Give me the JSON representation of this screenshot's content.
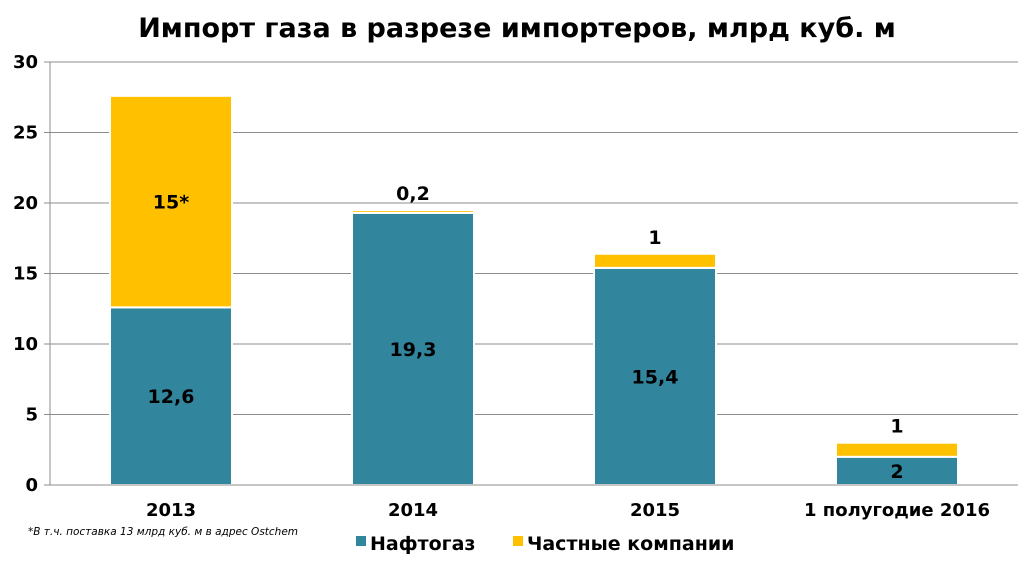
{
  "chart_data": {
    "type": "bar",
    "stacked": true,
    "title": "Импорт газа в разрезе импортеров, млрд куб. м",
    "categories": [
      "2013",
      "2014",
      "2015",
      "1 полугодие 2016"
    ],
    "series": [
      {
        "name": "Нафтогаз",
        "color": "#31859C",
        "values": [
          12.6,
          19.3,
          15.4,
          2
        ],
        "labels": [
          "12,6",
          "19,3",
          "15,4",
          "2"
        ]
      },
      {
        "name": "Частные компании",
        "color": "#FFC000",
        "values": [
          15,
          0.2,
          1,
          1
        ],
        "labels": [
          "15*",
          "0,2",
          "1",
          "1"
        ]
      }
    ],
    "ylim": [
      0,
      30
    ],
    "yticks": [
      0,
      5,
      10,
      15,
      20,
      25,
      30
    ],
    "grid": true,
    "legend": "bottom",
    "footnote": "*В т.ч. поставка  13 млрд куб. м в адрес Ostchem"
  }
}
